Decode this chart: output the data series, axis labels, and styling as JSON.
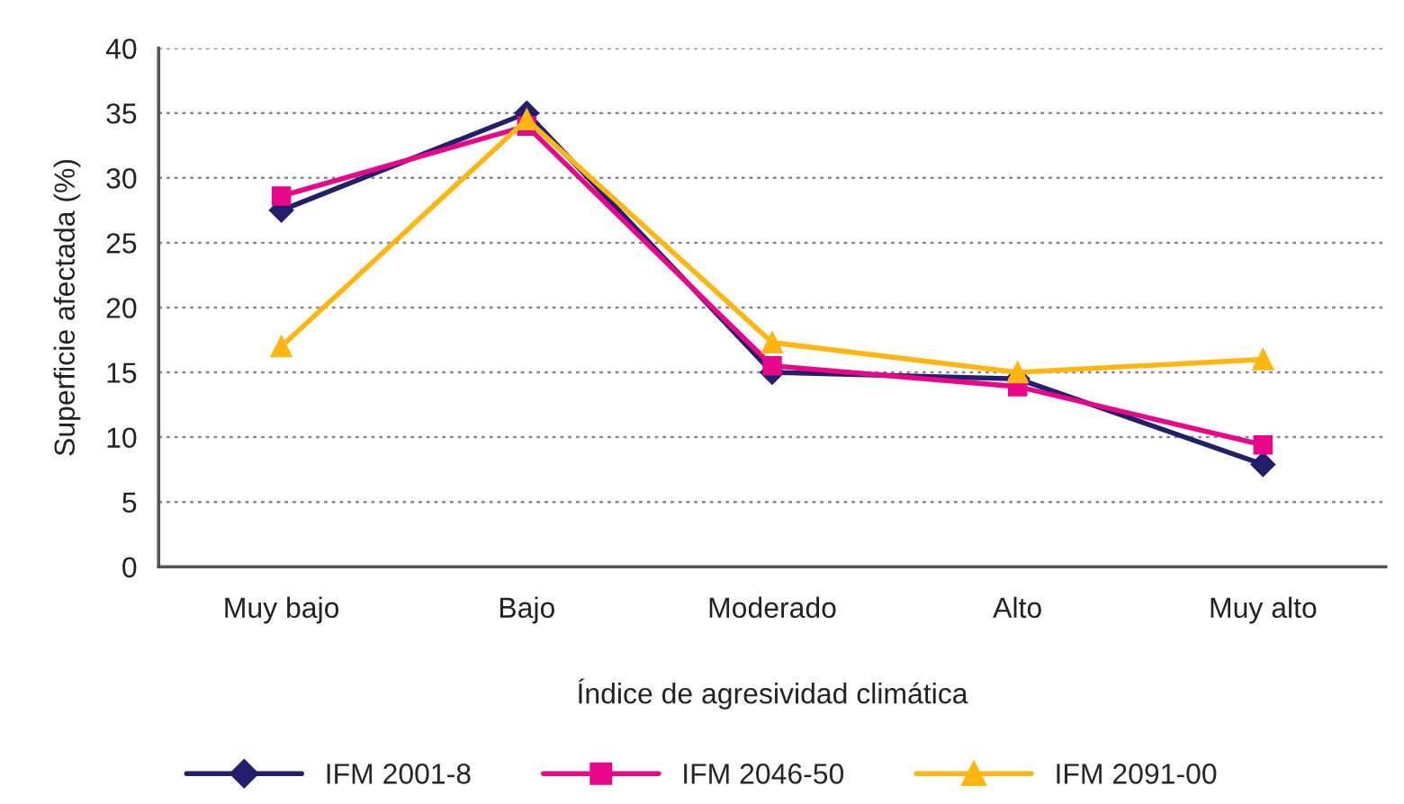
{
  "chart_data": {
    "type": "line",
    "xlabel": "Índice de agresividad climática",
    "ylabel": "Superficie afectada (%)",
    "categories": [
      "Muy bajo",
      "Bajo",
      "Moderado",
      "Alto",
      "Muy alto"
    ],
    "series": [
      {
        "name": "IFM 2001-8",
        "color": "#231f6b",
        "marker": "diamond",
        "values": [
          27.5,
          35.0,
          15.0,
          14.5,
          7.9
        ]
      },
      {
        "name": "IFM 2046-50",
        "color": "#e8078a",
        "marker": "square",
        "values": [
          28.6,
          34.0,
          15.5,
          13.9,
          9.4
        ]
      },
      {
        "name": "IFM 2091-00",
        "color": "#ffb612",
        "marker": "triangle",
        "values": [
          17.0,
          34.5,
          17.3,
          15.0,
          16.0
        ]
      }
    ],
    "ylim": [
      0,
      40
    ],
    "yticks": [
      0,
      5,
      10,
      15,
      20,
      25,
      30,
      35,
      40
    ],
    "grid": "y",
    "legend": "bottom",
    "line_style": "solid"
  }
}
